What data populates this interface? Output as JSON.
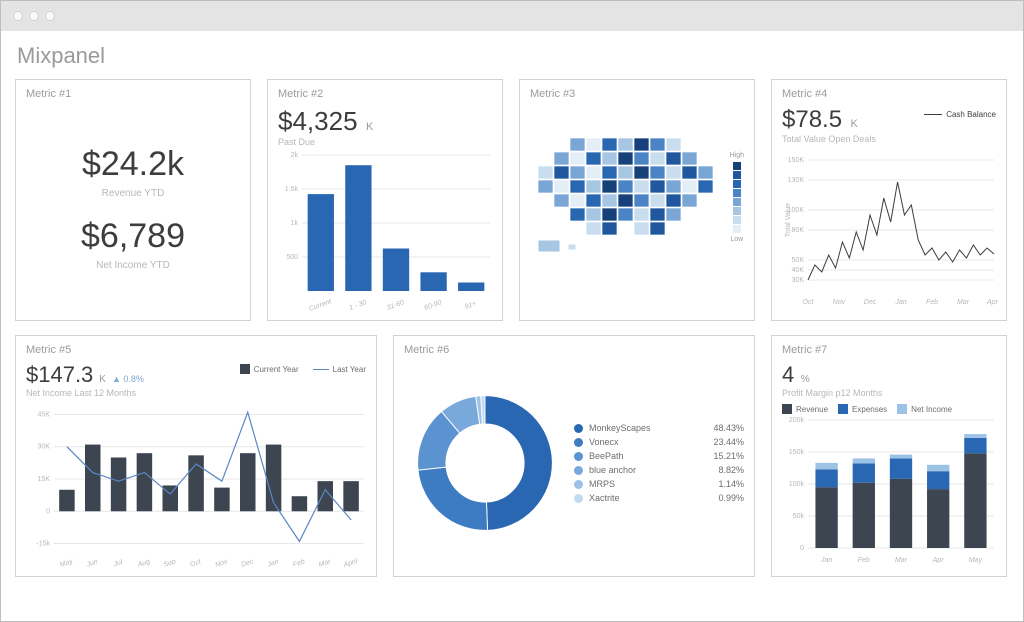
{
  "brand": "Mixpanel",
  "palette": {
    "card_border": "#d2d2d2",
    "text_muted": "#9a9a9a",
    "text_dark": "#3d3d3d",
    "grid": "#e7e7e7",
    "bar_blue": "#2a67b2",
    "bar_dark": "#3d4550",
    "line_blue": "#5a87c4",
    "line_dark": "#3d3d3d"
  },
  "metric1": {
    "title": "Metric #1",
    "value1": "$24.2k",
    "label1": "Revenue YTD",
    "value2": "$6,789",
    "label2": "Net Income YTD",
    "fontsize_value": 34,
    "fontsize_label": 10
  },
  "metric2": {
    "title": "Metric #2",
    "value": "$4,325",
    "unit": "K",
    "sublabel": "Past Due",
    "type": "bar",
    "categories": [
      "Current",
      "1 - 30",
      "31-60",
      "60-90",
      "91+"
    ],
    "values": [
      1425,
      1850,
      625,
      275,
      125
    ],
    "bar_color": "#2a67b2",
    "background_color": "#ffffff",
    "grid_color": "#e7e7e7",
    "ylim": [
      0,
      2000
    ],
    "yticks": [
      500,
      "1k",
      "1.5k",
      "2k"
    ],
    "ytick_values": [
      500,
      1000,
      1500,
      2000
    ],
    "bar_width": 0.7,
    "label_fontsize": 7
  },
  "metric3": {
    "title": "Metric #3",
    "type": "choropleth-map",
    "region": "USA",
    "scale_labels": {
      "high": "High",
      "low": "Low"
    },
    "scale_colors": [
      "#15407a",
      "#20579f",
      "#2a67b2",
      "#4b84c5",
      "#79a6d5",
      "#a7c6e4",
      "#c8ddee",
      "#e4eef7"
    ],
    "map_fill_default": "#cfe0f0",
    "map_highlight_states": {
      "CA": "#2a67b2",
      "TX": "#2a67b2",
      "NM": "#2a67b2",
      "AZ": "#4b84c5",
      "WA": "#2a67b2",
      "CO": "#4b84c5",
      "MO": "#2a67b2",
      "NY": "#2a67b2",
      "PA": "#2a67b2",
      "MN": "#4b84c5",
      "GA": "#79a6d5",
      "FL": "#a7c6e4"
    }
  },
  "metric4": {
    "title": "Metric #4",
    "value": "$78.5",
    "unit": "K",
    "sublabel": "Total Value Open Deals",
    "legend_label": "Cash Balance",
    "type": "line",
    "line_color": "#3d3d3d",
    "grid_color": "#e7e7e7",
    "x_categories": [
      "Oct",
      "Nov",
      "Dec",
      "Jan",
      "Feb",
      "Mar",
      "April"
    ],
    "yticks": [
      "30K",
      "40K",
      "50K",
      "80K",
      "100K",
      "130K",
      "150K"
    ],
    "ytick_values": [
      30,
      40,
      50,
      80,
      100,
      130,
      150
    ],
    "ylim": [
      20,
      160
    ],
    "ylabel": "Total Value",
    "series": [
      30,
      45,
      38,
      55,
      42,
      68,
      52,
      78,
      60,
      95,
      75,
      112,
      88,
      128,
      95,
      105,
      70,
      55,
      62,
      50,
      58,
      48,
      60,
      52,
      65,
      55,
      62,
      56
    ]
  },
  "metric5": {
    "title": "Metric #5",
    "value": "$147.3",
    "unit": "K",
    "delta_symbol": "▲",
    "delta": "0.8%",
    "sublabel": "Net Income Last 12 Months",
    "legend": {
      "current": "Current Year",
      "last": "Last Year"
    },
    "type": "bar+line",
    "bar_color": "#3d4550",
    "line_color": "#5a87c4",
    "grid_color": "#e7e7e7",
    "categories": [
      "May",
      "Jun",
      "Jul",
      "Aug",
      "Sep",
      "Oct",
      "Nov",
      "Dec",
      "Jan",
      "Feb",
      "Mar",
      "April"
    ],
    "bars": [
      10,
      31,
      25,
      27,
      12,
      26,
      11,
      27,
      31,
      7,
      14,
      14
    ],
    "line": [
      30,
      18,
      14,
      18,
      8,
      22,
      14,
      46,
      4,
      -14,
      10,
      -4
    ],
    "yticks": [
      "-15k",
      "0",
      "15K",
      "30K",
      "45K"
    ],
    "ytick_values": [
      -15,
      0,
      15,
      30,
      45
    ],
    "ylim": [
      -18,
      48
    ]
  },
  "metric6": {
    "title": "Metric #6",
    "type": "donut",
    "inner_radius_ratio": 0.58,
    "items": [
      {
        "label": "MonkeyScapes",
        "value": 48.43,
        "color": "#2a67b2"
      },
      {
        "label": "Vonecx",
        "value": 23.44,
        "color": "#3d7cc3"
      },
      {
        "label": "BeePath",
        "value": 15.21,
        "color": "#5a93d0"
      },
      {
        "label": "blue anchor",
        "value": 8.82,
        "color": "#79a9db"
      },
      {
        "label": "MRPS",
        "value": 1.14,
        "color": "#9cc2e6"
      },
      {
        "label": "Xactrite",
        "value": 0.99,
        "color": "#c4daf0"
      }
    ],
    "value_suffix": "%"
  },
  "metric7": {
    "title": "Metric #7",
    "value": "4",
    "unit": "%",
    "sublabel": "Profit Margin p12 Months",
    "type": "stacked-bar",
    "legend": [
      {
        "label": "Revenue",
        "color": "#3d4550"
      },
      {
        "label": "Expenses",
        "color": "#2a67b2"
      },
      {
        "label": "Net Income",
        "color": "#9cc2e6"
      }
    ],
    "categories": [
      "Jan",
      "Feb",
      "Mar",
      "Apr",
      "May"
    ],
    "revenue": [
      95,
      102,
      108,
      92,
      148
    ],
    "expenses": [
      28,
      30,
      32,
      28,
      24
    ],
    "net_income": [
      10,
      8,
      6,
      10,
      6
    ],
    "grid_color": "#e7e7e7",
    "yticks": [
      "0",
      "50k",
      "100k",
      "150k",
      "200k"
    ],
    "ytick_values": [
      0,
      50,
      100,
      150,
      200
    ],
    "ylim": [
      0,
      200
    ],
    "bar_width": 0.6
  }
}
